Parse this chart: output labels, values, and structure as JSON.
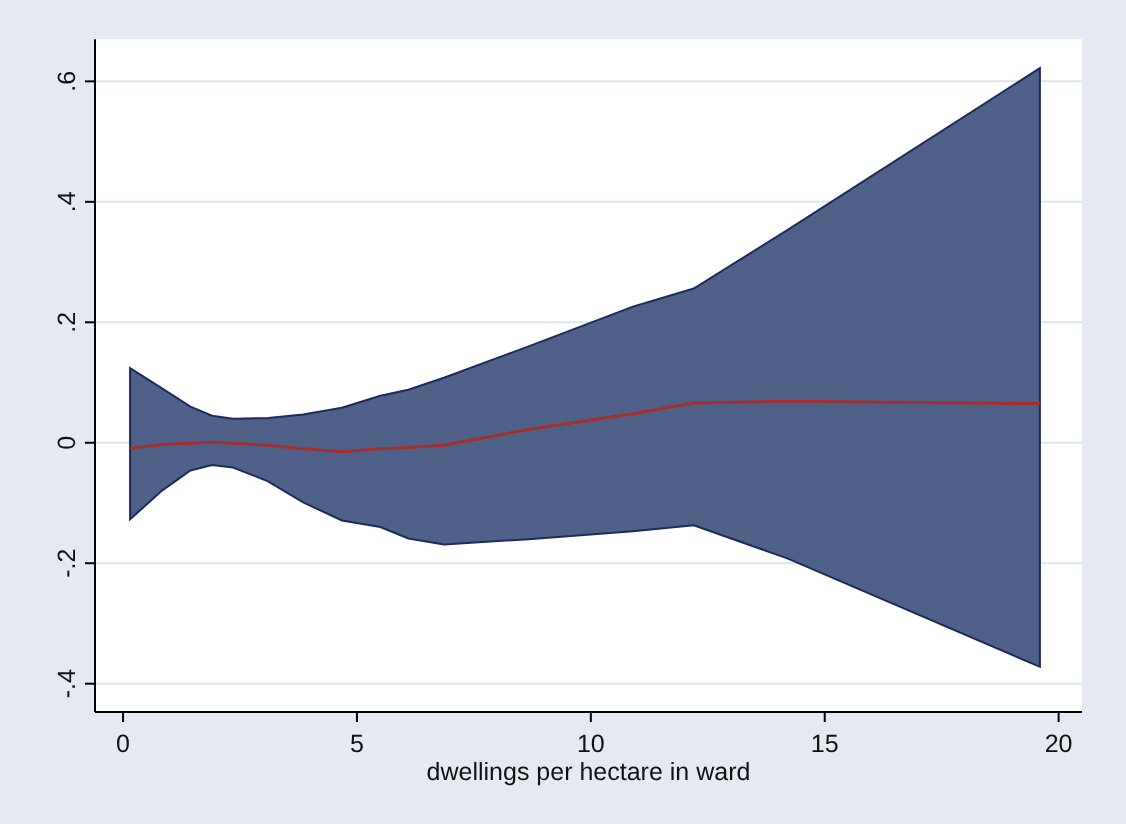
{
  "chart_data": {
    "type": "line",
    "xlabel": "dwellings per hectare in ward",
    "x": [
      0.15,
      0.84,
      1.44,
      1.9,
      2.35,
      3.1,
      3.85,
      4.68,
      5.5,
      6.1,
      6.86,
      8.67,
      10.9,
      12.2,
      14.2,
      19.6
    ],
    "series": [
      {
        "color": "#a3302f",
        "values": [
          -0.009,
          -0.003,
          -0.001,
          0.001,
          -0.001,
          -0.004,
          -0.01,
          -0.015,
          -0.01,
          -0.008,
          -0.004,
          0.022,
          0.048,
          0.066,
          0.069,
          0.065
        ],
        "lower": [
          -0.127,
          -0.079,
          -0.046,
          -0.037,
          -0.041,
          -0.064,
          -0.099,
          -0.129,
          -0.14,
          -0.159,
          -0.169,
          -0.16,
          -0.147,
          -0.137,
          -0.192,
          -0.372
        ],
        "upper": [
          0.124,
          0.09,
          0.06,
          0.045,
          0.04,
          0.041,
          0.047,
          0.058,
          0.078,
          0.088,
          0.108,
          0.16,
          0.226,
          0.256,
          0.353,
          0.622
        ]
      }
    ],
    "xlim": [
      -0.6,
      20.5
    ],
    "ylim": [
      -0.447,
      0.67
    ],
    "xticks": [
      0,
      5,
      10,
      15,
      20
    ],
    "yticks": [
      {
        "value": -0.4,
        "label": "-.4"
      },
      {
        "value": -0.2,
        "label": "-.2"
      },
      0,
      {
        "value": 0.2,
        "label": ".2"
      },
      {
        "value": 0.4,
        "label": ".4"
      },
      {
        "value": 0.6,
        "label": ".6"
      }
    ],
    "grid": "y",
    "line_style": "solid",
    "marker": "none"
  }
}
